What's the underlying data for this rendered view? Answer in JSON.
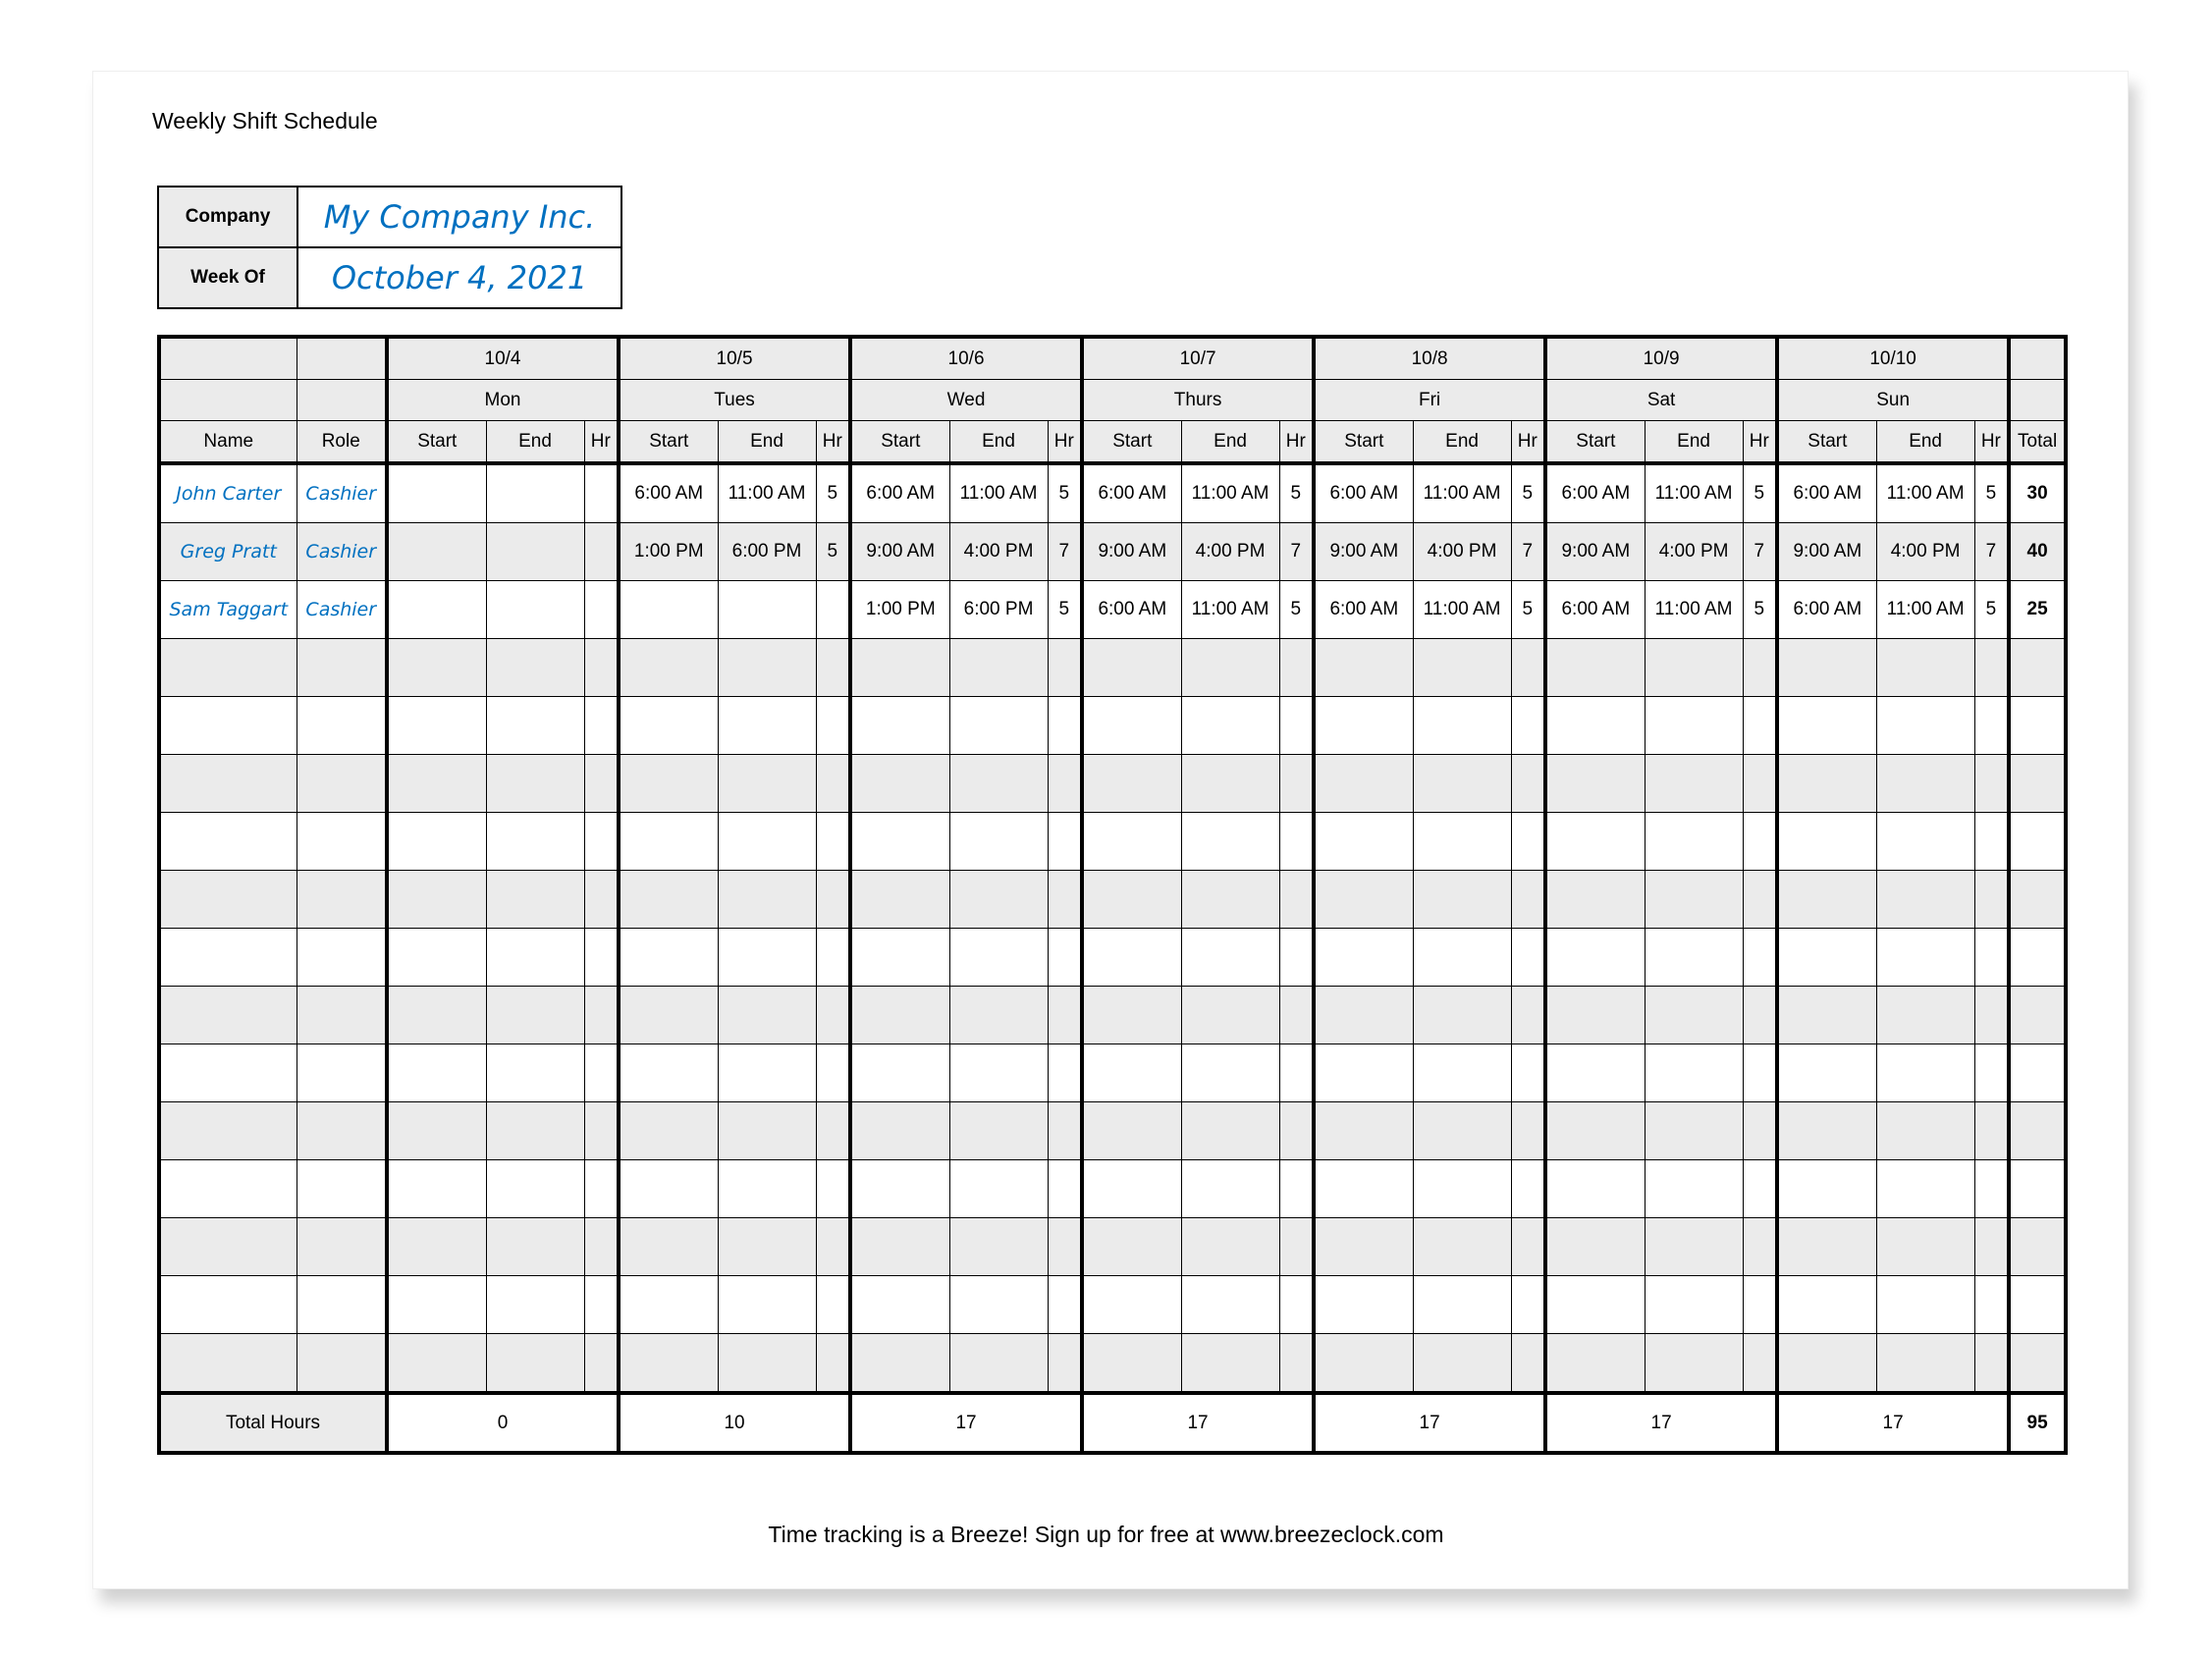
{
  "title": "Weekly Shift Schedule",
  "info": {
    "company_label": "Company",
    "company": "My Company Inc.",
    "week_label": "Week Of",
    "week": "October 4, 2021"
  },
  "days": [
    {
      "date": "10/4",
      "day": "Mon"
    },
    {
      "date": "10/5",
      "day": "Tues"
    },
    {
      "date": "10/6",
      "day": "Wed"
    },
    {
      "date": "10/7",
      "day": "Thurs"
    },
    {
      "date": "10/8",
      "day": "Fri"
    },
    {
      "date": "10/9",
      "day": "Sat"
    },
    {
      "date": "10/10",
      "day": "Sun"
    }
  ],
  "headers": {
    "name": "Name",
    "role": "Role",
    "start": "Start",
    "end": "End",
    "hr": "Hr",
    "total": "Total"
  },
  "employees": [
    {
      "name": "John Carter",
      "role": "Cashier",
      "shifts": [
        [
          "",
          "",
          ""
        ],
        [
          "6:00 AM",
          "11:00 AM",
          "5"
        ],
        [
          "6:00 AM",
          "11:00 AM",
          "5"
        ],
        [
          "6:00 AM",
          "11:00 AM",
          "5"
        ],
        [
          "6:00 AM",
          "11:00 AM",
          "5"
        ],
        [
          "6:00 AM",
          "11:00 AM",
          "5"
        ],
        [
          "6:00 AM",
          "11:00 AM",
          "5"
        ]
      ],
      "total": "30"
    },
    {
      "name": "Greg Pratt",
      "role": "Cashier",
      "shifts": [
        [
          "",
          "",
          ""
        ],
        [
          "1:00 PM",
          "6:00 PM",
          "5"
        ],
        [
          "9:00 AM",
          "4:00 PM",
          "7"
        ],
        [
          "9:00 AM",
          "4:00 PM",
          "7"
        ],
        [
          "9:00 AM",
          "4:00 PM",
          "7"
        ],
        [
          "9:00 AM",
          "4:00 PM",
          "7"
        ],
        [
          "9:00 AM",
          "4:00 PM",
          "7"
        ]
      ],
      "total": "40"
    },
    {
      "name": "Sam Taggart",
      "role": "Cashier",
      "shifts": [
        [
          "",
          "",
          ""
        ],
        [
          "",
          "",
          ""
        ],
        [
          "1:00 PM",
          "6:00 PM",
          "5"
        ],
        [
          "6:00 AM",
          "11:00 AM",
          "5"
        ],
        [
          "6:00 AM",
          "11:00 AM",
          "5"
        ],
        [
          "6:00 AM",
          "11:00 AM",
          "5"
        ],
        [
          "6:00 AM",
          "11:00 AM",
          "5"
        ]
      ],
      "total": "25"
    }
  ],
  "empty_rows": 13,
  "totals": {
    "label": "Total Hours",
    "days": [
      "0",
      "10",
      "17",
      "17",
      "17",
      "17",
      "17"
    ],
    "grand": "95"
  },
  "footer": "Time tracking is a Breeze! Sign up for free at www.breezeclock.com",
  "colors": {
    "handwritten": "#0070c0",
    "shade": "#ebebeb"
  }
}
